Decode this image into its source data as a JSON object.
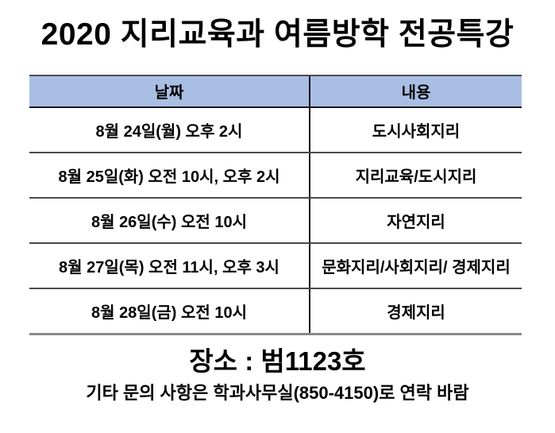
{
  "title": "2020 지리교육과 여름방학 전공특강",
  "colors": {
    "header_bg": "#A9BEE3",
    "text": "#000000",
    "border_dark": "#141414",
    "border_gray": "#8a8a8a"
  },
  "table": {
    "columns": [
      {
        "label": "날짜"
      },
      {
        "label": "내용"
      }
    ],
    "rows": [
      {
        "date": "8월 24일(월) 오후 2시",
        "content": "도시사회지리"
      },
      {
        "date": "8월 25일(화) 오전 10시, 오후 2시",
        "content": "지리교육/도시지리"
      },
      {
        "date": "8월 26일(수) 오전 10시",
        "content": "자연지리"
      },
      {
        "date": "8월 27일(목) 오전 11시, 오후 3시",
        "content": "문화지리/사회지리/ 경제지리"
      },
      {
        "date": "8월 28일(금) 오전 10시",
        "content": "경제지리"
      }
    ]
  },
  "footer": {
    "location": "장소 : 범1123호",
    "contact": "기타 문의 사항은 학과사무실(850-4150)로 연락 바람"
  }
}
